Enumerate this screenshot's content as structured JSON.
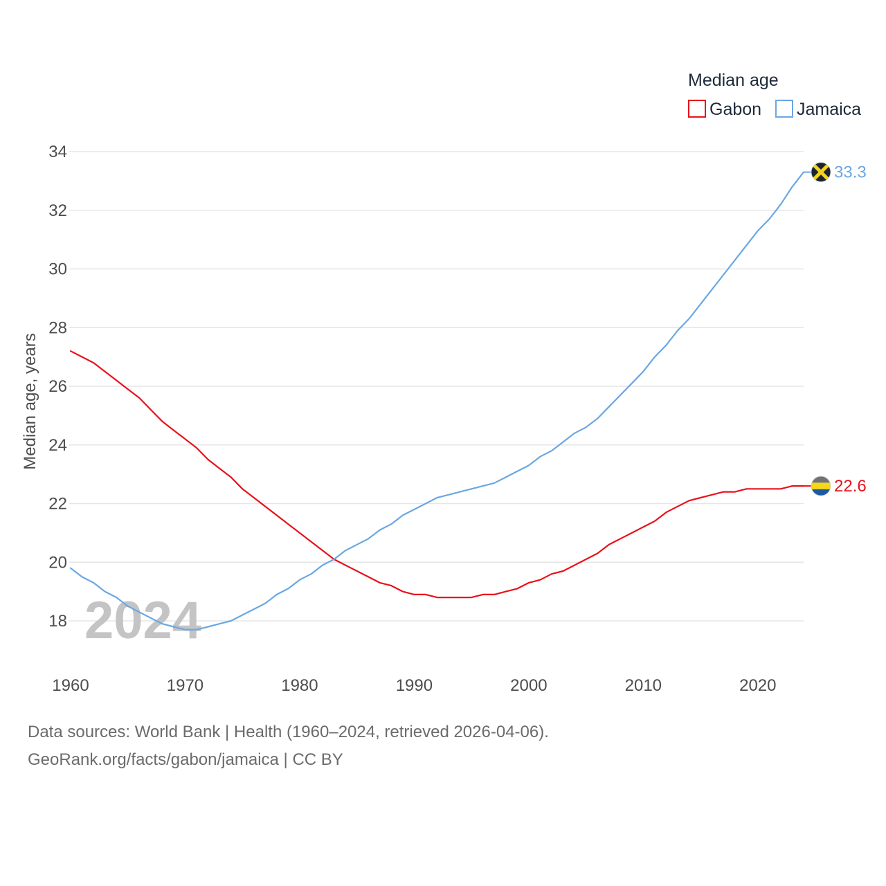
{
  "chart_data": {
    "type": "line",
    "title": "",
    "ylabel": "Median age, years",
    "xlabel": "",
    "xlim": [
      1960,
      2024
    ],
    "ylim": [
      17,
      34
    ],
    "x_ticks": [
      "1960",
      "1970",
      "1980",
      "1990",
      "2000",
      "2010",
      "2020"
    ],
    "y_ticks": [
      "18",
      "20",
      "22",
      "24",
      "26",
      "28",
      "30",
      "32",
      "34"
    ],
    "grid": true,
    "year_watermark": "2024",
    "legend": {
      "title": "Median age",
      "position": "top-right",
      "items": [
        "Gabon",
        "Jamaica"
      ]
    },
    "x": [
      1960,
      1961,
      1962,
      1963,
      1964,
      1965,
      1966,
      1967,
      1968,
      1969,
      1970,
      1971,
      1972,
      1973,
      1974,
      1975,
      1976,
      1977,
      1978,
      1979,
      1980,
      1981,
      1982,
      1983,
      1984,
      1985,
      1986,
      1987,
      1988,
      1989,
      1990,
      1991,
      1992,
      1993,
      1994,
      1995,
      1996,
      1997,
      1998,
      1999,
      2000,
      2001,
      2002,
      2003,
      2004,
      2005,
      2006,
      2007,
      2008,
      2009,
      2010,
      2011,
      2012,
      2013,
      2014,
      2015,
      2016,
      2017,
      2018,
      2019,
      2020,
      2021,
      2022,
      2023,
      2024
    ],
    "series": [
      {
        "name": "Gabon",
        "color": "#e8111b",
        "end_label": "22.6",
        "flag": "gabon-flag-icon",
        "values": [
          27.2,
          27.0,
          26.8,
          26.5,
          26.2,
          25.9,
          25.6,
          25.2,
          24.8,
          24.5,
          24.2,
          23.9,
          23.5,
          23.2,
          22.9,
          22.5,
          22.2,
          21.9,
          21.6,
          21.3,
          21.0,
          20.7,
          20.4,
          20.1,
          19.9,
          19.7,
          19.5,
          19.3,
          19.2,
          19.0,
          18.9,
          18.9,
          18.8,
          18.8,
          18.8,
          18.8,
          18.9,
          18.9,
          19.0,
          19.1,
          19.3,
          19.4,
          19.6,
          19.7,
          19.9,
          20.1,
          20.3,
          20.6,
          20.8,
          21.0,
          21.2,
          21.4,
          21.7,
          21.9,
          22.1,
          22.2,
          22.3,
          22.4,
          22.4,
          22.5,
          22.5,
          22.5,
          22.5,
          22.6,
          22.6
        ]
      },
      {
        "name": "Jamaica",
        "color": "#6aa7e3",
        "end_label": "33.3",
        "flag": "jamaica-flag-icon",
        "values": [
          19.8,
          19.5,
          19.3,
          19.0,
          18.8,
          18.5,
          18.3,
          18.1,
          17.9,
          17.8,
          17.7,
          17.7,
          17.8,
          17.9,
          18.0,
          18.2,
          18.4,
          18.6,
          18.9,
          19.1,
          19.4,
          19.6,
          19.9,
          20.1,
          20.4,
          20.6,
          20.8,
          21.1,
          21.3,
          21.6,
          21.8,
          22.0,
          22.2,
          22.3,
          22.4,
          22.5,
          22.6,
          22.7,
          22.9,
          23.1,
          23.3,
          23.6,
          23.8,
          24.1,
          24.4,
          24.6,
          24.9,
          25.3,
          25.7,
          26.1,
          26.5,
          27.0,
          27.4,
          27.9,
          28.3,
          28.8,
          29.3,
          29.8,
          30.3,
          30.8,
          31.3,
          31.7,
          32.2,
          32.8,
          33.3
        ]
      }
    ]
  },
  "footer": {
    "source": "Data sources: World Bank | Health (1960–2024, retrieved 2026-04-06).",
    "credit": "GeoRank.org/facts/gabon/jamaica | CC BY"
  }
}
